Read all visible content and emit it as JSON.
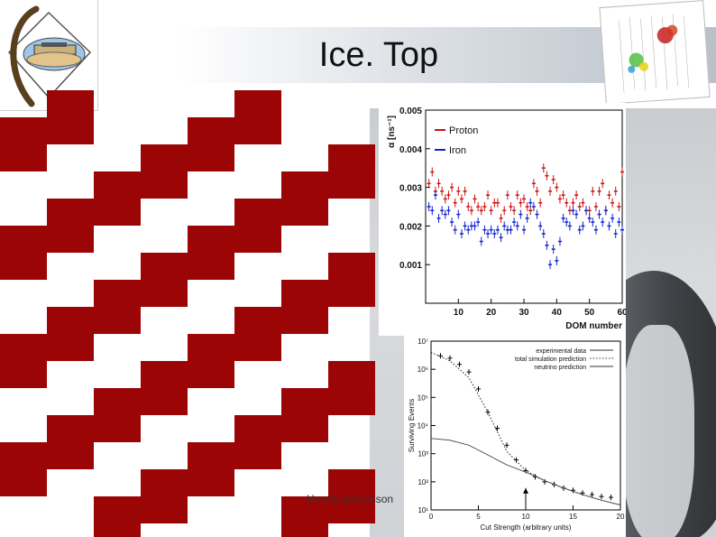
{
  "slide": {
    "title": "Ice. Top",
    "author": "Henrik Johansson"
  },
  "colors": {
    "pattern_red": "#9b0505",
    "proton": "#cc1111",
    "iron": "#1122cc"
  },
  "chart_data": [
    {
      "type": "scatter",
      "ylabel": "α [ns⁻¹]",
      "xlabel": "DOM number",
      "xlim": [
        0,
        60
      ],
      "ylim": [
        0,
        0.005
      ],
      "yticks": [
        "0.001",
        "0.002",
        "0.003",
        "0.004",
        "0.005"
      ],
      "xticks": [
        "10",
        "20",
        "30",
        "40",
        "50",
        "60"
      ],
      "legend_position": "top-left",
      "series": [
        {
          "name": "Proton",
          "color": "#cc1111",
          "x": [
            1,
            2,
            3,
            4,
            5,
            6,
            7,
            8,
            9,
            10,
            11,
            12,
            13,
            14,
            15,
            16,
            17,
            18,
            19,
            20,
            21,
            22,
            23,
            24,
            25,
            26,
            27,
            28,
            29,
            30,
            31,
            32,
            33,
            34,
            35,
            36,
            37,
            38,
            39,
            40,
            41,
            42,
            43,
            44,
            45,
            46,
            47,
            48,
            49,
            50,
            51,
            52,
            53,
            54,
            55,
            56,
            57,
            58,
            59,
            60
          ],
          "y": [
            0.0031,
            0.0034,
            0.0029,
            0.0031,
            0.0029,
            0.0027,
            0.0028,
            0.003,
            0.0026,
            0.0029,
            0.0027,
            0.0029,
            0.0025,
            0.0024,
            0.0027,
            0.0025,
            0.0024,
            0.0025,
            0.0028,
            0.0024,
            0.0026,
            0.0026,
            0.0022,
            0.0024,
            0.0028,
            0.0025,
            0.0024,
            0.0028,
            0.0026,
            0.0027,
            0.0025,
            0.0024,
            0.0031,
            0.0029,
            0.0026,
            0.0035,
            0.0033,
            0.0029,
            0.0032,
            0.003,
            0.0027,
            0.0028,
            0.0026,
            0.0024,
            0.0026,
            0.0028,
            0.0025,
            0.0026,
            0.0024,
            0.0024,
            0.0029,
            0.0025,
            0.0029,
            0.0031,
            0.0024,
            0.0028,
            0.0026,
            0.0029,
            0.0025,
            0.0034
          ]
        },
        {
          "name": "Iron",
          "color": "#1122cc",
          "x": [
            1,
            2,
            3,
            4,
            5,
            6,
            7,
            8,
            9,
            10,
            11,
            12,
            13,
            14,
            15,
            16,
            17,
            18,
            19,
            20,
            21,
            22,
            23,
            24,
            25,
            26,
            27,
            28,
            29,
            30,
            31,
            32,
            33,
            34,
            35,
            36,
            37,
            38,
            39,
            40,
            41,
            42,
            43,
            44,
            45,
            46,
            47,
            48,
            49,
            50,
            51,
            52,
            53,
            54,
            55,
            56,
            57,
            58,
            59,
            60
          ],
          "y": [
            0.0025,
            0.0024,
            0.0028,
            0.0022,
            0.0024,
            0.0023,
            0.0024,
            0.0021,
            0.0019,
            0.0023,
            0.0018,
            0.002,
            0.0019,
            0.002,
            0.002,
            0.0021,
            0.0016,
            0.0019,
            0.0018,
            0.0019,
            0.0018,
            0.0019,
            0.0017,
            0.002,
            0.0019,
            0.0019,
            0.0021,
            0.002,
            0.0023,
            0.0019,
            0.0022,
            0.0026,
            0.0025,
            0.0023,
            0.002,
            0.0018,
            0.0015,
            0.001,
            0.0014,
            0.0011,
            0.0016,
            0.0022,
            0.0021,
            0.002,
            0.0024,
            0.0023,
            0.0019,
            0.002,
            0.0024,
            0.0022,
            0.0021,
            0.0019,
            0.0023,
            0.0021,
            0.0024,
            0.002,
            0.0022,
            0.0018,
            0.0021,
            0.0019
          ]
        }
      ]
    },
    {
      "type": "line",
      "ylabel": "Surviving Events",
      "xlabel": "Cut Strength (arbitrary units)",
      "xlim": [
        0,
        20
      ],
      "yscale": "log",
      "ylim": [
        10,
        10000000
      ],
      "xticks": [
        "0",
        "5",
        "10",
        "15",
        "20"
      ],
      "yticks": [
        "10¹",
        "10²",
        "10³",
        "10⁴",
        "10⁵",
        "10⁶",
        "10⁷"
      ],
      "legend_position": "top-right",
      "series": [
        {
          "name": "experimental data",
          "style": "points",
          "x": [
            1,
            2,
            3,
            4,
            5,
            6,
            7,
            8,
            9,
            10,
            11,
            12,
            13,
            14,
            15,
            16,
            17,
            18,
            19
          ],
          "y": [
            3000000,
            2500000,
            1500000,
            800000,
            200000,
            30000,
            8000,
            2000,
            600,
            250,
            150,
            100,
            80,
            60,
            50,
            40,
            35,
            30,
            28
          ]
        },
        {
          "name": "total simulation prediction",
          "style": "dotted",
          "x": [
            0,
            2,
            4,
            6,
            8,
            10,
            12,
            14,
            16,
            18,
            20
          ],
          "y": [
            4000000,
            2000000,
            500000,
            30000,
            1200,
            250,
            110,
            60,
            35,
            22,
            15
          ]
        },
        {
          "name": "neutrino prediction",
          "style": "solid",
          "x": [
            0,
            2,
            4,
            6,
            8,
            10,
            12,
            14,
            16,
            18,
            20
          ],
          "y": [
            3500,
            3000,
            2000,
            900,
            400,
            220,
            110,
            60,
            35,
            22,
            15
          ]
        }
      ],
      "annotation": "arrow at cut strength 10"
    }
  ]
}
